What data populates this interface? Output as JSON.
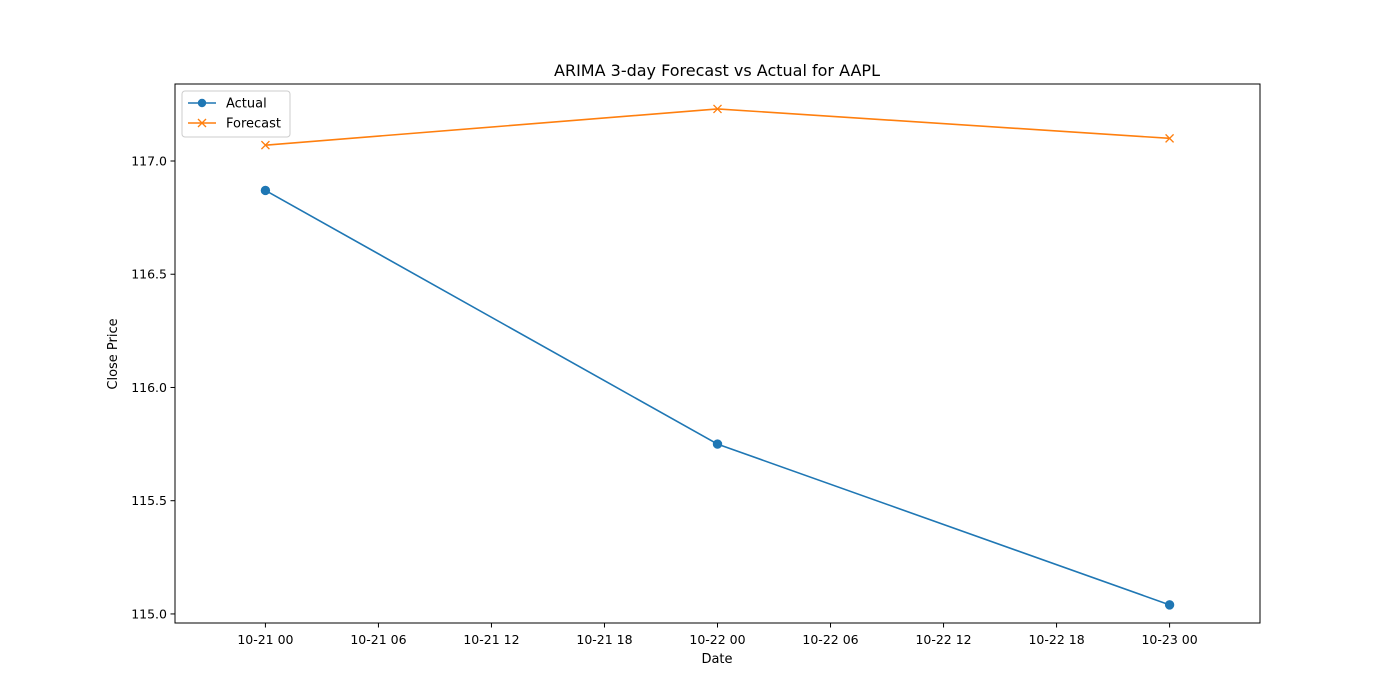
{
  "chart_data": {
    "type": "line",
    "title": "ARIMA 3-day Forecast vs Actual for AAPL",
    "xlabel": "Date",
    "ylabel": "Close Price",
    "x": [
      "2020-10-21",
      "2020-10-22",
      "2020-10-23"
    ],
    "x_tick_labels": [
      "10-21 00",
      "10-21 06",
      "10-21 12",
      "10-21 18",
      "10-22 00",
      "10-22 06",
      "10-22 12",
      "10-22 18",
      "10-23 00"
    ],
    "y_ticks": [
      115.0,
      115.5,
      116.0,
      116.5,
      117.0
    ],
    "y_tick_labels": [
      "115.0",
      "115.5",
      "116.0",
      "116.5",
      "117.0"
    ],
    "ylim": [
      114.96,
      117.34
    ],
    "xlim": [
      "2020-10-20T19:12",
      "2020-10-23T04:48"
    ],
    "series": [
      {
        "name": "Actual",
        "values": [
          116.87,
          115.75,
          115.04
        ],
        "color": "#1f77b4",
        "marker": "circle"
      },
      {
        "name": "Forecast",
        "values": [
          117.07,
          117.23,
          117.1
        ],
        "color": "#ff7f0e",
        "marker": "x"
      }
    ],
    "grid": false,
    "legend_position": "top-left"
  }
}
